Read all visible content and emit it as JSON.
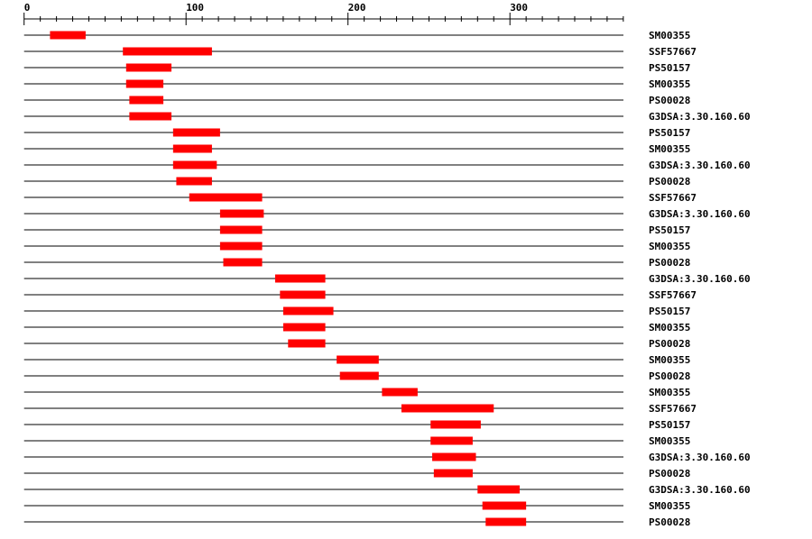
{
  "axis": {
    "min": 0,
    "max": 370,
    "major_ticks": [
      0,
      100,
      200,
      300
    ],
    "minor_step": 10
  },
  "colors": {
    "domain": "#ff0000",
    "line": "#000000"
  },
  "chart_data": {
    "type": "domain-map",
    "tracks": [
      {
        "label": "SM00355",
        "start": 16,
        "end": 38
      },
      {
        "label": "SSF57667",
        "start": 61,
        "end": 116
      },
      {
        "label": "PS50157",
        "start": 63,
        "end": 91
      },
      {
        "label": "SM00355",
        "start": 63,
        "end": 86
      },
      {
        "label": "PS00028",
        "start": 65,
        "end": 86
      },
      {
        "label": "G3DSA:3.30.160.60",
        "start": 65,
        "end": 91
      },
      {
        "label": "PS50157",
        "start": 92,
        "end": 121
      },
      {
        "label": "SM00355",
        "start": 92,
        "end": 116
      },
      {
        "label": "G3DSA:3.30.160.60",
        "start": 92,
        "end": 119
      },
      {
        "label": "PS00028",
        "start": 94,
        "end": 116
      },
      {
        "label": "SSF57667",
        "start": 102,
        "end": 147
      },
      {
        "label": "G3DSA:3.30.160.60",
        "start": 121,
        "end": 148
      },
      {
        "label": "PS50157",
        "start": 121,
        "end": 147
      },
      {
        "label": "SM00355",
        "start": 121,
        "end": 147
      },
      {
        "label": "PS00028",
        "start": 123,
        "end": 147
      },
      {
        "label": "G3DSA:3.30.160.60",
        "start": 155,
        "end": 186
      },
      {
        "label": "SSF57667",
        "start": 158,
        "end": 186
      },
      {
        "label": "PS50157",
        "start": 160,
        "end": 191
      },
      {
        "label": "SM00355",
        "start": 160,
        "end": 186
      },
      {
        "label": "PS00028",
        "start": 163,
        "end": 186
      },
      {
        "label": "SM00355",
        "start": 193,
        "end": 219
      },
      {
        "label": "PS00028",
        "start": 195,
        "end": 219
      },
      {
        "label": "SM00355",
        "start": 221,
        "end": 243
      },
      {
        "label": "SSF57667",
        "start": 233,
        "end": 290
      },
      {
        "label": "PS50157",
        "start": 251,
        "end": 282
      },
      {
        "label": "SM00355",
        "start": 251,
        "end": 277
      },
      {
        "label": "G3DSA:3.30.160.60",
        "start": 252,
        "end": 279
      },
      {
        "label": "PS00028",
        "start": 253,
        "end": 277
      },
      {
        "label": "G3DSA:3.30.160.60",
        "start": 280,
        "end": 306
      },
      {
        "label": "SM00355",
        "start": 283,
        "end": 310
      },
      {
        "label": "PS00028",
        "start": 285,
        "end": 310
      }
    ]
  }
}
